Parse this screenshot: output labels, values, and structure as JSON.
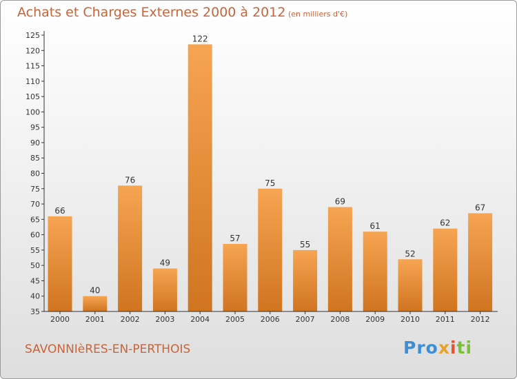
{
  "header": {
    "title": "Achats et Charges Externes 2000 à 2012",
    "unit": "(en milliers d'€)"
  },
  "footer": {
    "commune": "SAVONNIèRES-EN-PERTHOIS",
    "logo": {
      "p1": "Pro",
      "p2": "x",
      "p3": "i",
      "p4": "ti"
    }
  },
  "colors": {
    "title": "#c8643a",
    "bar_top": "#f6a552",
    "bar_bottom": "#d07420",
    "axis": "#333333"
  },
  "chart_data": {
    "type": "bar",
    "categories": [
      "2000",
      "2001",
      "2002",
      "2003",
      "2004",
      "2005",
      "2006",
      "2007",
      "2008",
      "2009",
      "2010",
      "2011",
      "2012"
    ],
    "values": [
      66,
      40,
      76,
      49,
      122,
      57,
      75,
      55,
      69,
      61,
      52,
      62,
      67
    ],
    "ylim": [
      35,
      125
    ],
    "yticks": [
      35,
      40,
      45,
      50,
      55,
      60,
      65,
      70,
      75,
      80,
      85,
      90,
      95,
      100,
      105,
      110,
      115,
      120,
      125
    ],
    "grid": false,
    "legend": "none"
  }
}
